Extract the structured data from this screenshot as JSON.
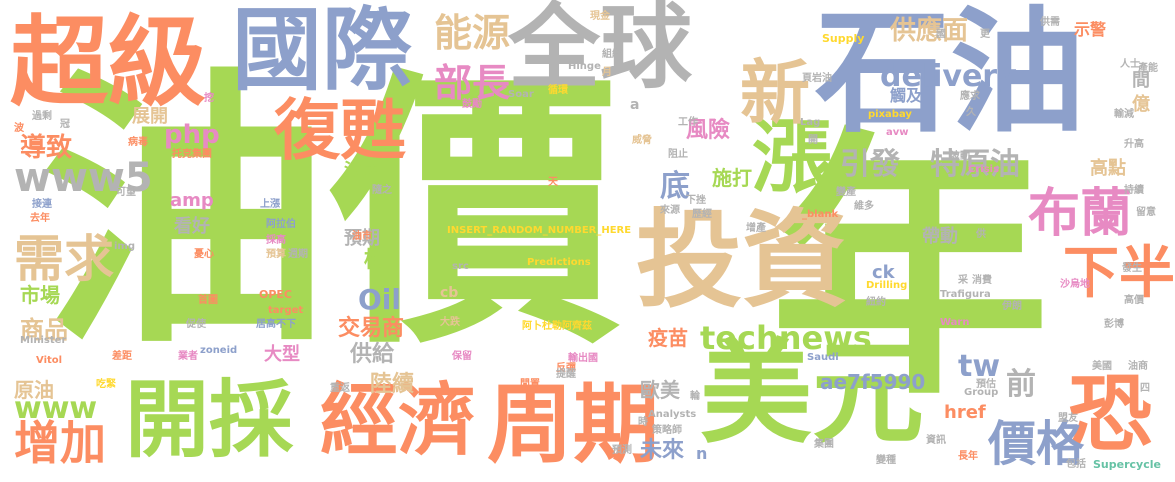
{
  "words": {
    "w1": "油價",
    "w2": "年",
    "w3": "石油",
    "w4": "全球",
    "w5": "國際",
    "w6": "超級",
    "w7": "美元",
    "w8": "投資",
    "w9": "開採",
    "w10": "周期",
    "w11": "經濟",
    "w12": "恐",
    "w13": "漲",
    "w14": "復甦",
    "w15": "新",
    "w16": "能源",
    "w17": "部長",
    "w18": "布蘭",
    "w19": "下半年",
    "w20": "需求",
    "w21": "增加",
    "w22": "價格",
    "w23": "technews",
    "w24": "www5",
    "w25": "www",
    "w26": "delivery",
    "w27": "供應面",
    "w28": "特原油",
    "w29": "引發",
    "w30": "底",
    "w31": "風險",
    "w32": "施打",
    "w33": "商品",
    "w34": "市場",
    "w35": "導致",
    "w36": "Oil",
    "w37": "tw",
    "w38": "前",
    "w39": "php",
    "w40": "交易商",
    "w41": "供給",
    "w42": "陸續",
    "w43": "歐美",
    "w44": "未來",
    "w45": "ae7f5990",
    "w46": "疫苗",
    "w47": "大型",
    "w48": "桶",
    "w49": "預期",
    "w50": "看好",
    "w51": "沙國",
    "w52": "帶動",
    "w53": "ck",
    "w54": "href",
    "w55": "amp",
    "w56": "原油",
    "w57": "展開",
    "w58": "高點",
    "w59": "間",
    "w60": "億",
    "w61": "觸及",
    "w62": "示警",
    "w63": "cb",
    "w64": "n",
    "w65": "a",
    "w66": "Predictions",
    "w67": "INSERT_RANDOM_NUMBER_HERE",
    "w68": "阿卜杜勒阿齊茲",
    "w69": "OPEC",
    "w70": "Supercycle",
    "w71": "Supply",
    "w72": "Drilling",
    "w73": "Trafigura",
    "w74": "Crisis",
    "w75": "Analysts",
    "w76": "Vitol",
    "w77": "Minister",
    "w78": "Saudi",
    "w79": "Group",
    "w80": "Warn",
    "w81": "Hinge",
    "w82": "Soar",
    "w83": "Lag",
    "w84": "pixabay",
    "w85": "avw",
    "w86": "_blank",
    "w87": "zoneid",
    "w88": "target",
    "w89": "src",
    "w90": "img",
    "w91": "托克集團",
    "w92": "阿拉伯",
    "w93": "採高",
    "w94": "預算",
    "w95": "週期",
    "w96": "上漲",
    "w97": "憂心",
    "w98": "首圖",
    "w99": "促使",
    "w100": "業者",
    "w101": "居高不下",
    "w102": "油市",
    "w103": "大跌",
    "w104": "保留",
    "w105": "輸出國",
    "w106": "反彈",
    "w107": "提醒",
    "w108": "閒置",
    "w109": "重返",
    "w110": "吃緊",
    "w111": "差距",
    "w112": "冠",
    "w113": "波",
    "w114": "過剩",
    "w115": "病毒",
    "w116": "可望",
    "w117": "接連",
    "w118": "去年",
    "w119": "挖",
    "w120": "鼓勵",
    "w121": "循環",
    "w122": "組織",
    "w123": "現金",
    "w124": "月",
    "w125": "工作",
    "w126": "威脅",
    "w127": "阻止",
    "w128": "下挫",
    "w129": "來源",
    "w130": "歷經",
    "w131": "天",
    "w132": "隨之",
    "w133": "頁岩油",
    "w134": "國",
    "w135": "更",
    "w136": "應求",
    "w137": "久",
    "w138": "開",
    "w139": "變產",
    "w140": "維多",
    "w141": "增產",
    "w142": "供",
    "w143": "采",
    "w144": "消費",
    "w145": "紐約",
    "w146": "沙烏地",
    "w147": "高價",
    "w148": "伊朗",
    "w149": "彭博",
    "w150": "發生",
    "w151": "美國",
    "w152": "油商",
    "w153": "預估",
    "w154": "四",
    "w155": "盟友",
    "w156": "資訊",
    "w157": "長年",
    "w158": "集團",
    "w159": "變種",
    "w160": "包括",
    "w161": "預測",
    "w162": "策略師",
    "w163": "時",
    "w164": "輪",
    "w165": "升高",
    "w166": "持續",
    "w167": "留意",
    "w168": "供需",
    "w169": "產能",
    "w170": "人士",
    "w171": "輸減",
    "w172": "波動"
  }
}
